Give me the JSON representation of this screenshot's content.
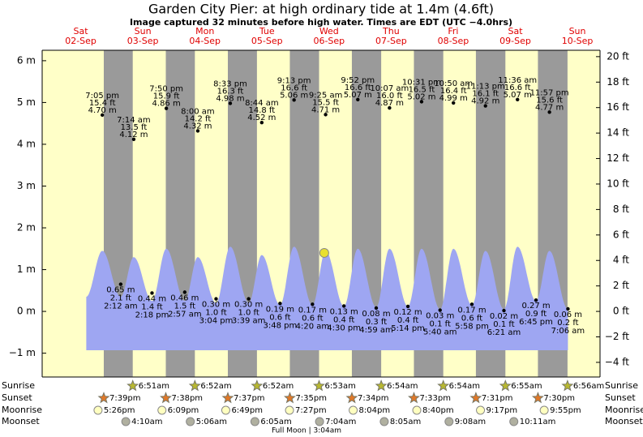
{
  "chart_data": {
    "type": "tide",
    "title": "Garden City Pier: at high  ordinary tide at 1.4m (4.6ft)",
    "subtitle": "Image captured 32 minutes before high water. Times are EDT (UTC −4.0hrs)",
    "ylim": [
      -1.57,
      6.25
    ],
    "yticks": [
      {
        "value": -1,
        "label": "−1 m"
      },
      {
        "value": 0,
        "label": "0 m"
      },
      {
        "value": 1,
        "label": "1 m"
      },
      {
        "value": 2,
        "label": "2 m"
      },
      {
        "value": 3,
        "label": "3 m"
      },
      {
        "value": 4,
        "label": "4 m"
      },
      {
        "value": 5,
        "label": "5 m"
      },
      {
        "value": 6,
        "label": "6 m"
      }
    ],
    "y2lim": [
      -5.15,
      20.5
    ],
    "y2ticks": [
      {
        "value": -4,
        "label": "−4 ft"
      },
      {
        "value": -2,
        "label": "−2 ft"
      },
      {
        "value": 0,
        "label": "0 ft"
      },
      {
        "value": 2,
        "label": "2 ft"
      },
      {
        "value": 4,
        "label": "4 ft"
      },
      {
        "value": 6,
        "label": "6 ft"
      },
      {
        "value": 8,
        "label": "8 ft"
      },
      {
        "value": 10,
        "label": "10 ft"
      },
      {
        "value": 12,
        "label": "12 ft"
      },
      {
        "value": 14,
        "label": "14 ft"
      },
      {
        "value": 16,
        "label": "16 ft"
      },
      {
        "value": 18,
        "label": "18 ft"
      },
      {
        "value": 20,
        "label": "20 ft"
      }
    ],
    "colors": {
      "day": "#ffffc8",
      "night": "#9a9a9a",
      "tide": "#9ea6f2",
      "day_label": "#e00000",
      "now": "#e8e030"
    },
    "now": {
      "level": 1.4
    },
    "row_labels": [
      "Sunrise",
      "Sunset",
      "Moonrise",
      "Moonset"
    ],
    "moon_phase": "Full Moon | 3:04am",
    "days": [
      {
        "dow": "Sat",
        "date": "02-Sep",
        "sunrise": null,
        "sunset": "7:39pm",
        "moonrise": "5:26pm",
        "moonset": null,
        "tides": [
          {
            "kind": "high",
            "time": "7:05 pm",
            "ft": "15.4 ft",
            "m": 4.7,
            "m_label": "4.70 m",
            "level": 1.45
          }
        ]
      },
      {
        "dow": "Sun",
        "date": "03-Sep",
        "sunrise": "6:51am",
        "sunset": "7:38pm",
        "moonrise": "6:09pm",
        "moonset": "4:10am",
        "tides": [
          {
            "kind": "low",
            "time": "2:12 am",
            "ft": "2.1 ft",
            "m": 0.65,
            "m_label": "0.65 m",
            "level": 0.35
          },
          {
            "kind": "high",
            "time": "7:14 am",
            "ft": "13.5 ft",
            "m": 4.12,
            "m_label": "4.12 m",
            "level": 1.3
          },
          {
            "kind": "low",
            "time": "2:18 pm",
            "ft": "1.4 ft",
            "m": 0.44,
            "m_label": "0.44 m",
            "level": 0.25
          },
          {
            "kind": "high",
            "time": "7:50 pm",
            "ft": "15.9 ft",
            "m": 4.86,
            "m_label": "4.86 m",
            "level": 1.5
          }
        ]
      },
      {
        "dow": "Mon",
        "date": "04-Sep",
        "sunrise": "6:52am",
        "sunset": "7:37pm",
        "moonrise": "6:49pm",
        "moonset": "5:06am",
        "tides": [
          {
            "kind": "low",
            "time": "2:57 am",
            "ft": "1.5 ft",
            "m": 0.46,
            "m_label": "0.46 m",
            "level": 0.25
          },
          {
            "kind": "high",
            "time": "8:00 am",
            "ft": "14.2 ft",
            "m": 4.32,
            "m_label": "4.32 m",
            "level": 1.3
          },
          {
            "kind": "low",
            "time": "3:04 pm",
            "ft": "1.0 ft",
            "m": 0.3,
            "m_label": "0.30 m",
            "level": 0.2
          },
          {
            "kind": "high",
            "time": "8:33 pm",
            "ft": "16.3 ft",
            "m": 4.98,
            "m_label": "4.98 m",
            "level": 1.55
          }
        ]
      },
      {
        "dow": "Tue",
        "date": "05-Sep",
        "sunrise": "6:52am",
        "sunset": "7:35pm",
        "moonrise": "7:27pm",
        "moonset": "6:05am",
        "tides": [
          {
            "kind": "low",
            "time": "3:39 am",
            "ft": "1.0 ft",
            "m": 0.3,
            "m_label": "0.30 m",
            "level": 0.2
          },
          {
            "kind": "high",
            "time": "8:44 am",
            "ft": "14.8 ft",
            "m": 4.52,
            "m_label": "4.52 m",
            "level": 1.35
          },
          {
            "kind": "low",
            "time": "3:48 pm",
            "ft": "0.6 ft",
            "m": 0.19,
            "m_label": "0.19 m",
            "level": 0.15
          },
          {
            "kind": "high",
            "time": "9:13 pm",
            "ft": "16.6 ft",
            "m": 5.06,
            "m_label": "5.06 m",
            "level": 1.55
          }
        ]
      },
      {
        "dow": "Wed",
        "date": "06-Sep",
        "sunrise": "6:53am",
        "sunset": "7:34pm",
        "moonrise": "8:04pm",
        "moonset": "7:04am",
        "tides": [
          {
            "kind": "low",
            "time": "4:20 am",
            "ft": "0.6 ft",
            "m": 0.17,
            "m_label": "0.17 m",
            "level": 0.15
          },
          {
            "kind": "high",
            "time": "9:25 am",
            "ft": "15.5 ft",
            "m": 4.71,
            "m_label": "4.71 m",
            "level": 1.45
          },
          {
            "kind": "low",
            "time": "4:30 pm",
            "ft": "0.4 ft",
            "m": 0.13,
            "m_label": "0.13 m",
            "level": 0.12
          },
          {
            "kind": "high",
            "time": "9:52 pm",
            "ft": "16.6 ft",
            "m": 5.07,
            "m_label": "5.07 m",
            "level": 1.5
          }
        ]
      },
      {
        "dow": "Thu",
        "date": "07-Sep",
        "sunrise": "6:54am",
        "sunset": "7:33pm",
        "moonrise": "8:40pm",
        "moonset": "8:05am",
        "tides": [
          {
            "kind": "low",
            "time": "4:59 am",
            "ft": "0.3 ft",
            "m": 0.08,
            "m_label": "0.08 m",
            "level": 0.1
          },
          {
            "kind": "high",
            "time": "10:07 am",
            "ft": "16.0 ft",
            "m": 4.87,
            "m_label": "4.87 m",
            "level": 1.5
          },
          {
            "kind": "low",
            "time": "5:14 pm",
            "ft": "0.4 ft",
            "m": 0.12,
            "m_label": "0.12 m",
            "level": 0.12
          },
          {
            "kind": "high",
            "time": "10:31 pm",
            "ft": "16.5 ft",
            "m": 5.02,
            "m_label": "5.02 m",
            "level": 1.5
          }
        ]
      },
      {
        "dow": "Fri",
        "date": "08-Sep",
        "sunrise": "6:54am",
        "sunset": "7:31pm",
        "moonrise": "9:17pm",
        "moonset": "9:08am",
        "tides": [
          {
            "kind": "low",
            "time": "5:40 am",
            "ft": "0.1 ft",
            "m": 0.03,
            "m_label": "0.03 m",
            "level": 0.05
          },
          {
            "kind": "high",
            "time": "10:50 am",
            "ft": "16.4 ft",
            "m": 4.99,
            "m_label": "4.99 m",
            "level": 1.5
          },
          {
            "kind": "low",
            "time": "5:58 pm",
            "ft": "0.6 ft",
            "m": 0.17,
            "m_label": "0.17 m",
            "level": 0.15
          },
          {
            "kind": "high",
            "time": "11:13 pm",
            "ft": "16.1 ft",
            "m": 4.92,
            "m_label": "4.92 m",
            "level": 1.45
          }
        ]
      },
      {
        "dow": "Sat",
        "date": "09-Sep",
        "sunrise": "6:55am",
        "sunset": "7:30pm",
        "moonrise": "9:55pm",
        "moonset": "10:11am",
        "tides": [
          {
            "kind": "low",
            "time": "6:21 am",
            "ft": "0.1 ft",
            "m": 0.02,
            "m_label": "0.02 m",
            "level": 0.05
          },
          {
            "kind": "high",
            "time": "11:36 am",
            "ft": "16.6 ft",
            "m": 5.07,
            "m_label": "5.07 m",
            "level": 1.55
          },
          {
            "kind": "low",
            "time": "6:45 pm",
            "ft": "0.9 ft",
            "m": 0.27,
            "m_label": "0.27 m",
            "level": 0.25
          },
          {
            "kind": "high",
            "time": "11:57 pm",
            "ft": "15.6 ft",
            "m": 4.77,
            "m_label": "4.77 m",
            "level": 1.45
          }
        ]
      },
      {
        "dow": "Sun",
        "date": "10-Sep",
        "sunrise": "6:56am",
        "sunset": null,
        "moonrise": null,
        "moonset": null,
        "tides": [
          {
            "kind": "low",
            "time": "7:06 am",
            "ft": "0.2 ft",
            "m": 0.06,
            "m_label": "0.06 m",
            "level": 0.05
          }
        ]
      }
    ]
  }
}
